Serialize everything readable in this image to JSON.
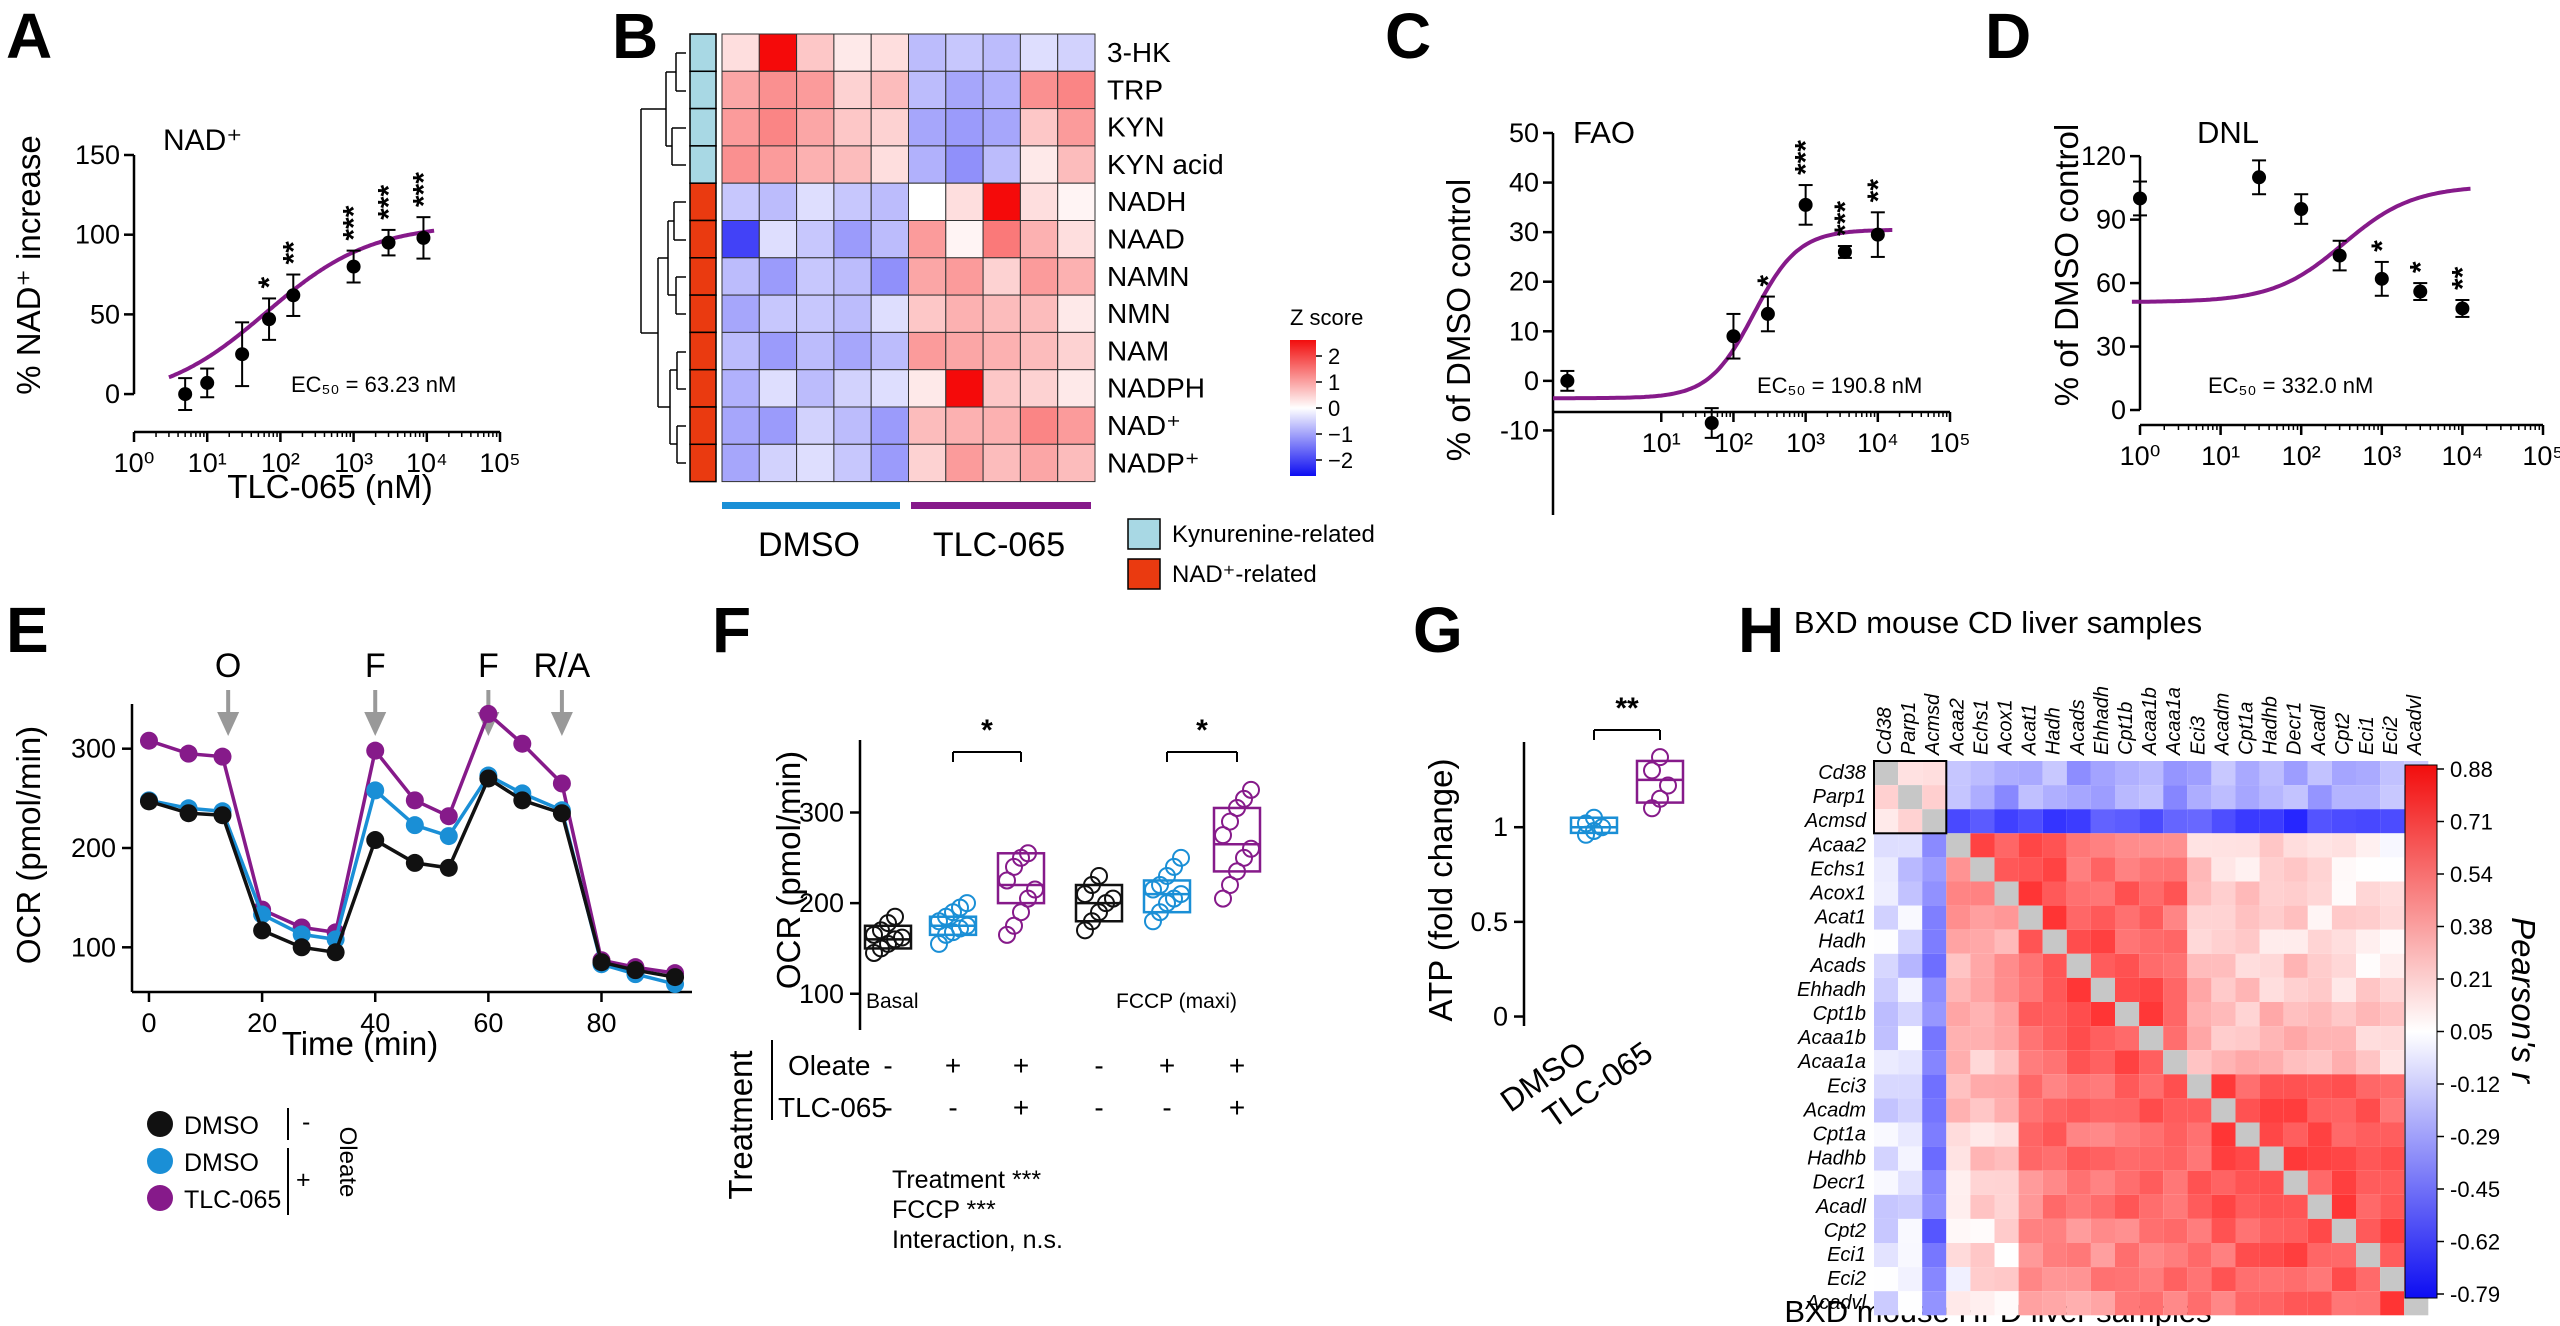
{
  "panel_letters": [
    "A",
    "B",
    "C",
    "D",
    "E",
    "F",
    "G",
    "H"
  ],
  "colors": {
    "dmso_black": "#111111",
    "dmso_blue": "#1a8fd6",
    "tlc": "#861a8a",
    "kyn": "#a8d8e4",
    "nad": "#ea3a10"
  },
  "chart_data": [
    {
      "id": "A",
      "type": "scatter",
      "title": "NAD⁺",
      "xlabel": "TLC-065 (nM)",
      "ylabel": "% NAD⁺ increase",
      "xscale": "log10",
      "xlim_exp": [
        0,
        5
      ],
      "ylim": [
        -10,
        150
      ],
      "xticks": [
        "10⁰",
        "10¹",
        "10²",
        "10³",
        "10⁴",
        "10⁵"
      ],
      "yticks": [
        0,
        50,
        100,
        150
      ],
      "annotation": "EC₅₀ = 63.23 nM",
      "points": [
        {
          "x": 5,
          "y": 0,
          "err": 10,
          "sig": ""
        },
        {
          "x": 10,
          "y": 7,
          "err": 9,
          "sig": ""
        },
        {
          "x": 30,
          "y": 25,
          "err": 20,
          "sig": ""
        },
        {
          "x": 70,
          "y": 47,
          "err": 13,
          "sig": "*"
        },
        {
          "x": 150,
          "y": 62,
          "err": 13,
          "sig": "**"
        },
        {
          "x": 1000,
          "y": 80,
          "err": 10,
          "sig": "***"
        },
        {
          "x": 3000,
          "y": 95,
          "err": 8,
          "sig": "***"
        },
        {
          "x": 9000,
          "y": 98,
          "err": 13,
          "sig": "***"
        }
      ],
      "fit": {
        "bottom": -5,
        "top": 107,
        "ec50": 63.23,
        "hill": 0.6
      }
    },
    {
      "id": "B",
      "type": "heatmap",
      "rows": [
        "3-HK",
        "TRP",
        "KYN",
        "KYN acid",
        "NADH",
        "NAAD",
        "NAMN",
        "NMN",
        "NAM",
        "NADPH",
        "NAD⁺",
        "NADP⁺"
      ],
      "row_groups": [
        "kyn",
        "kyn",
        "kyn",
        "kyn",
        "nad",
        "nad",
        "nad",
        "nad",
        "nad",
        "nad",
        "nad",
        "nad"
      ],
      "group_labels": [
        "DMSO",
        "TLC-065"
      ],
      "colorbar_title": "Z score",
      "colorbar_ticks": [
        "2",
        "1",
        "0",
        "−1",
        "−2"
      ],
      "colorbar_range": [
        -2,
        2
      ],
      "legend": [
        "Kynurenine-related",
        "NAD⁺-related"
      ],
      "values": [
        [
          0.3,
          2.2,
          0.5,
          0.2,
          0.3,
          -0.6,
          -0.5,
          -0.6,
          -0.3,
          -0.4
        ],
        [
          0.8,
          1.0,
          0.9,
          0.4,
          0.6,
          -0.6,
          -0.8,
          -0.7,
          1.0,
          1.1
        ],
        [
          0.9,
          1.1,
          0.8,
          0.5,
          0.4,
          -0.8,
          -0.9,
          -0.8,
          0.5,
          0.9
        ],
        [
          1.0,
          0.9,
          0.7,
          0.6,
          0.3,
          -0.7,
          -1.0,
          -0.6,
          0.2,
          0.6
        ],
        [
          -0.5,
          -0.6,
          -0.3,
          -0.5,
          -0.6,
          0.0,
          0.3,
          2.4,
          0.3,
          0.1
        ],
        [
          -1.7,
          -0.3,
          -0.5,
          -0.9,
          -0.6,
          0.9,
          0.1,
          1.2,
          0.7,
          0.3
        ],
        [
          -0.6,
          -0.9,
          -0.5,
          -0.6,
          -1.0,
          0.8,
          0.9,
          0.4,
          0.9,
          0.7
        ],
        [
          -0.8,
          -0.5,
          -0.5,
          -0.6,
          -0.3,
          0.5,
          0.7,
          0.6,
          0.6,
          0.2
        ],
        [
          -0.6,
          -0.9,
          -0.6,
          -0.8,
          -0.6,
          0.9,
          0.8,
          0.7,
          0.6,
          0.4
        ],
        [
          -0.7,
          -0.3,
          -0.6,
          -0.4,
          -0.3,
          0.2,
          2.3,
          0.5,
          0.4,
          0.2
        ],
        [
          -0.8,
          -0.9,
          -0.4,
          -0.6,
          -0.9,
          0.6,
          0.7,
          0.7,
          1.1,
          0.9
        ],
        [
          -0.8,
          -0.4,
          -0.3,
          -0.5,
          -0.9,
          0.4,
          0.9,
          0.6,
          0.8,
          0.6
        ]
      ]
    },
    {
      "id": "C",
      "type": "scatter",
      "title": "FAO",
      "ylabel": "% of DMSO control",
      "xscale": "log10",
      "xlim_exp": [
        -0.5,
        5
      ],
      "ylim": [
        -20,
        50
      ],
      "xticks": [
        "10¹",
        "10²",
        "10³",
        "10⁴",
        "10⁵"
      ],
      "yticks": [
        -10,
        0,
        10,
        20,
        30,
        40,
        50
      ],
      "annotation": "EC₅₀ = 190.8 nM",
      "points": [
        {
          "x": 0.5,
          "y": 0,
          "err": 2,
          "sig": ""
        },
        {
          "x": 50,
          "y": -8.5,
          "err": 3,
          "sig": ""
        },
        {
          "x": 100,
          "y": 9,
          "err": 4.5,
          "sig": ""
        },
        {
          "x": 300,
          "y": 13.5,
          "err": 3.5,
          "sig": "*"
        },
        {
          "x": 1000,
          "y": 35.5,
          "err": 4,
          "sig": "***"
        },
        {
          "x": 3500,
          "y": 26,
          "err": 1.2,
          "sig": "***"
        },
        {
          "x": 10000,
          "y": 29.5,
          "err": 4.5,
          "sig": "**"
        }
      ],
      "fit": {
        "bottom": -3.5,
        "top": 30.5,
        "ec50": 190.8,
        "hill": 1.4
      }
    },
    {
      "id": "D",
      "type": "scatter",
      "title": "DNL",
      "ylabel": "% of DMSO control",
      "xscale": "log10",
      "xlim_exp": [
        0,
        5
      ],
      "ylim": [
        0,
        130
      ],
      "xticks": [
        "10⁰",
        "10¹",
        "10²",
        "10³",
        "10⁴",
        "10⁵"
      ],
      "yticks": [
        0,
        30,
        60,
        90,
        120
      ],
      "annotation": "EC₅₀ = 332.0 nM",
      "points": [
        {
          "x": 1,
          "y": 100,
          "err": 8,
          "sig": ""
        },
        {
          "x": 30,
          "y": 110,
          "err": 8,
          "sig": ""
        },
        {
          "x": 100,
          "y": 95,
          "err": 7,
          "sig": ""
        },
        {
          "x": 300,
          "y": 73,
          "err": 7,
          "sig": ""
        },
        {
          "x": 1000,
          "y": 62,
          "err": 8,
          "sig": "*"
        },
        {
          "x": 3000,
          "y": 56,
          "err": 4,
          "sig": "*"
        },
        {
          "x": 10000,
          "y": 48,
          "err": 4,
          "sig": "**"
        }
      ],
      "fit": {
        "bottom": 51,
        "top": 106,
        "ec50": 332.0,
        "hill": 1.0
      }
    },
    {
      "id": "E",
      "type": "line",
      "xlabel": "Time (min)",
      "ylabel": "OCR (pmol/min)",
      "xlim": [
        -3,
        96
      ],
      "ylim": [
        55,
        345
      ],
      "xticks": [
        0,
        20,
        40,
        60,
        80
      ],
      "yticks": [
        100,
        200,
        300
      ],
      "injections": [
        {
          "label": "O",
          "x": 14
        },
        {
          "label": "F",
          "x": 40
        },
        {
          "label": "F",
          "x": 60
        },
        {
          "label": "R/A",
          "x": 73
        }
      ],
      "x": [
        0,
        7,
        13,
        20,
        27,
        33,
        40,
        47,
        53,
        60,
        66,
        73,
        80,
        86,
        93
      ],
      "series": [
        {
          "name": "DMSO",
          "color": "dmso_black",
          "values": [
            247,
            235,
            233,
            117,
            100,
            95,
            208,
            185,
            180,
            270,
            248,
            235,
            85,
            77,
            70
          ]
        },
        {
          "name": "DMSO",
          "color": "dmso_blue",
          "values": [
            248,
            240,
            237,
            133,
            113,
            108,
            258,
            223,
            212,
            273,
            255,
            238,
            83,
            73,
            63
          ]
        },
        {
          "name": "TLC-065",
          "color": "tlc",
          "values": [
            308,
            295,
            292,
            138,
            120,
            115,
            298,
            248,
            232,
            335,
            305,
            265,
            87,
            80,
            74
          ]
        }
      ],
      "legend_entries": [
        "DMSO",
        "DMSO",
        "TLC-065"
      ],
      "legend_side": "Oleate",
      "legend_signs": [
        "-",
        "+"
      ]
    },
    {
      "id": "F",
      "type": "box",
      "ylabel": "OCR (pmol/min)",
      "ylim": [
        60,
        380
      ],
      "yticks": [
        100,
        200,
        300
      ],
      "section_labels": [
        "Basal",
        "FCCP (maxi)"
      ],
      "groups": [
        {
          "section": "Basal",
          "color": "dmso_black",
          "q1": 150,
          "median": 160,
          "q3": 175,
          "points": [
            145,
            150,
            155,
            160,
            162,
            165,
            170,
            178,
            185
          ]
        },
        {
          "section": "Basal",
          "color": "dmso_blue",
          "q1": 165,
          "median": 175,
          "q3": 185,
          "points": [
            155,
            165,
            168,
            172,
            175,
            180,
            185,
            190,
            195,
            200
          ]
        },
        {
          "section": "Basal",
          "color": "tlc",
          "q1": 200,
          "median": 220,
          "q3": 255,
          "points": [
            165,
            175,
            190,
            205,
            215,
            225,
            240,
            250,
            255
          ]
        },
        {
          "section": "FCCP",
          "color": "dmso_black",
          "q1": 180,
          "median": 200,
          "q3": 220,
          "points": [
            170,
            180,
            190,
            200,
            205,
            210,
            220,
            230
          ]
        },
        {
          "section": "FCCP",
          "color": "dmso_blue",
          "q1": 190,
          "median": 210,
          "q3": 225,
          "points": [
            180,
            190,
            200,
            205,
            210,
            215,
            220,
            230,
            240,
            250
          ]
        },
        {
          "section": "FCCP",
          "color": "tlc",
          "q1": 235,
          "median": 265,
          "q3": 305,
          "points": [
            205,
            220,
            235,
            250,
            260,
            275,
            290,
            305,
            315,
            325
          ]
        }
      ],
      "significance": [
        "*",
        "*"
      ],
      "treatment_title": "Treatment",
      "treatment_rows": [
        {
          "label": "Oleate",
          "signs": [
            "-",
            "+",
            "+",
            "-",
            "+",
            "+"
          ]
        },
        {
          "label": "TLC-065",
          "signs": [
            "-",
            "-",
            "+",
            "-",
            "-",
            "+"
          ]
        }
      ],
      "stats": [
        "Treatment ***",
        "FCCP ***",
        "Interaction, n.s."
      ]
    },
    {
      "id": "G",
      "type": "box",
      "ylabel": "ATP (fold change)",
      "ylim": [
        -0.05,
        1.45
      ],
      "yticks": [
        0.0,
        0.5,
        1.0
      ],
      "categories": [
        "DMSO",
        "TLC-065"
      ],
      "groups": [
        {
          "color": "dmso_blue",
          "q1": 0.97,
          "median": 1.0,
          "q3": 1.05,
          "points": [
            0.96,
            0.98,
            1.0,
            1.02,
            1.05
          ]
        },
        {
          "color": "tlc",
          "q1": 1.13,
          "median": 1.25,
          "q3": 1.35,
          "points": [
            1.1,
            1.15,
            1.22,
            1.3,
            1.37
          ]
        }
      ],
      "significance": "**"
    },
    {
      "id": "H",
      "type": "heatmap",
      "title_top": "BXD mouse CD liver samples",
      "title_bottom": "BXD mouse HFD liver samples",
      "colorbar_title": "Pearson's r",
      "colorbar_ticks": [
        "0.88",
        "0.71",
        "0.54",
        "0.38",
        "0.21",
        "0.05",
        "-0.12",
        "-0.29",
        "-0.45",
        "-0.62",
        "-0.79"
      ],
      "colorbar_range": [
        -0.79,
        0.88
      ],
      "genes": [
        "Cd38",
        "Parp1",
        "Acmsd",
        "Acaa2",
        "Echs1",
        "Acox1",
        "Acat1",
        "Hadh",
        "Acads",
        "Ehhadh",
        "Cpt1b",
        "Acaa1b",
        "Acaa1a",
        "Eci3",
        "Acadm",
        "Cpt1a",
        "Hadhb",
        "Decr1",
        "Acadl",
        "Cpt2",
        "Eci1",
        "Eci2",
        "Acadvl"
      ]
    }
  ]
}
